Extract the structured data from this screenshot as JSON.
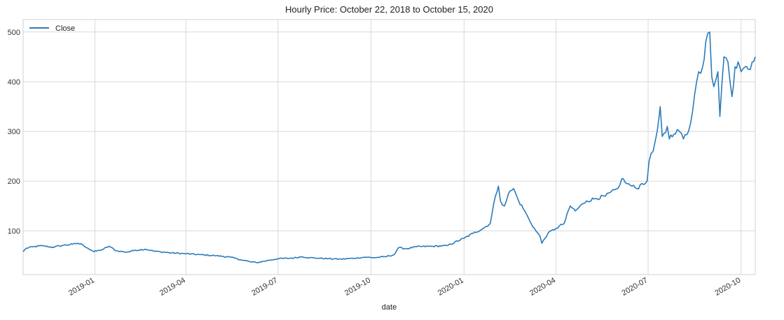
{
  "chart_data": {
    "type": "line",
    "title": "Hourly Price: October 22, 2018 to October 15, 2020",
    "xlabel": "date",
    "ylabel": "",
    "xlim": [
      "2018-10-22",
      "2020-10-15"
    ],
    "ylim": [
      12,
      525
    ],
    "grid": true,
    "legend": "top-left",
    "x_ticks": [
      "2019-01",
      "2019-04",
      "2019-07",
      "2019-10",
      "2020-01",
      "2020-04",
      "2020-07",
      "2020-10"
    ],
    "y_ticks": [
      100,
      200,
      300,
      400,
      500
    ],
    "series": [
      {
        "name": "Close",
        "color": "#2b7bba",
        "x": [
          "2018-10-22",
          "2018-10-25",
          "2018-11-01",
          "2018-11-10",
          "2018-11-20",
          "2018-12-01",
          "2018-12-10",
          "2018-12-15",
          "2018-12-20",
          "2018-12-25",
          "2018-12-31",
          "2019-01-08",
          "2019-01-15",
          "2019-01-22",
          "2019-02-01",
          "2019-02-10",
          "2019-02-20",
          "2019-03-01",
          "2019-03-15",
          "2019-04-01",
          "2019-04-15",
          "2019-05-01",
          "2019-05-15",
          "2019-05-25",
          "2019-06-03",
          "2019-06-10",
          "2019-06-20",
          "2019-07-01",
          "2019-07-15",
          "2019-07-25",
          "2019-08-01",
          "2019-08-10",
          "2019-08-20",
          "2019-09-01",
          "2019-09-15",
          "2019-09-25",
          "2019-10-05",
          "2019-10-15",
          "2019-10-24",
          "2019-10-28",
          "2019-11-05",
          "2019-11-15",
          "2019-12-01",
          "2019-12-15",
          "2020-01-01",
          "2020-01-10",
          "2020-01-20",
          "2020-01-27",
          "2020-02-01",
          "2020-02-04",
          "2020-02-06",
          "2020-02-10",
          "2020-02-14",
          "2020-02-19",
          "2020-02-24",
          "2020-03-01",
          "2020-03-06",
          "2020-03-12",
          "2020-03-16",
          "2020-03-18",
          "2020-03-24",
          "2020-04-01",
          "2020-04-09",
          "2020-04-15",
          "2020-04-20",
          "2020-04-28",
          "2020-05-01",
          "2020-05-10",
          "2020-05-20",
          "2020-06-01",
          "2020-06-05",
          "2020-06-10",
          "2020-06-15",
          "2020-06-20",
          "2020-06-25",
          "2020-06-30",
          "2020-07-02",
          "2020-07-06",
          "2020-07-08",
          "2020-07-10",
          "2020-07-13",
          "2020-07-15",
          "2020-07-20",
          "2020-07-22",
          "2020-07-28",
          "2020-08-01",
          "2020-08-05",
          "2020-08-10",
          "2020-08-14",
          "2020-08-18",
          "2020-08-20",
          "2020-08-24",
          "2020-08-27",
          "2020-08-31",
          "2020-09-02",
          "2020-09-04",
          "2020-09-08",
          "2020-09-10",
          "2020-09-14",
          "2020-09-18",
          "2020-09-22",
          "2020-09-25",
          "2020-09-28",
          "2020-10-01",
          "2020-10-05",
          "2020-10-08",
          "2020-10-12",
          "2020-10-15"
        ],
        "y": [
          58,
          65,
          68,
          70,
          67,
          71,
          73,
          75,
          72,
          65,
          58,
          62,
          69,
          60,
          57,
          61,
          63,
          59,
          56,
          54,
          52,
          50,
          47,
          42,
          38,
          36,
          40,
          44,
          45,
          48,
          46,
          45,
          44,
          43,
          45,
          47,
          46,
          48,
          52,
          66,
          64,
          68,
          69,
          70,
          85,
          95,
          105,
          115,
          170,
          190,
          160,
          150,
          175,
          185,
          160,
          140,
          120,
          100,
          90,
          75,
          95,
          105,
          115,
          150,
          140,
          155,
          160,
          165,
          170,
          185,
          205,
          195,
          190,
          185,
          195,
          200,
          240,
          260,
          280,
          300,
          350,
          290,
          310,
          285,
          295,
          300,
          285,
          300,
          340,
          400,
          420,
          430,
          480,
          500,
          410,
          390,
          420,
          330,
          450,
          440,
          370,
          430,
          440,
          420,
          430,
          425,
          440,
          450
        ]
      }
    ]
  }
}
